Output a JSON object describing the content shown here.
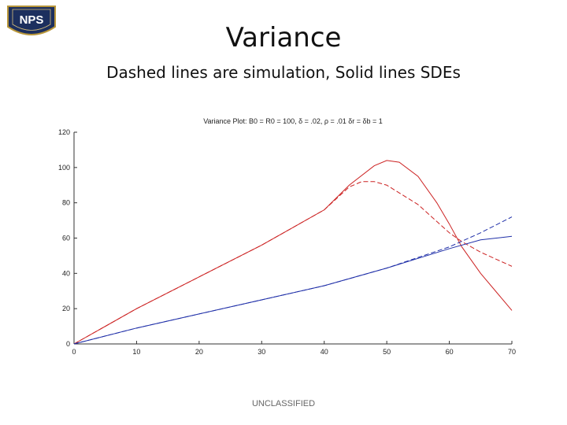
{
  "slide": {
    "title": "Variance",
    "subtitle": "Dashed lines are simulation, Solid lines SDEs",
    "footer": "UNCLASSIFIED",
    "logo_text": "NPS"
  },
  "chart_data": {
    "type": "line",
    "title": "Variance Plot: B0 = R0 = 100, δ = .02, ρ = .01 δr = δb = 1",
    "xlim": [
      0,
      70
    ],
    "ylim": [
      0,
      120
    ],
    "xticks": [
      0,
      10,
      20,
      30,
      40,
      50,
      60,
      70
    ],
    "yticks": [
      0,
      20,
      40,
      60,
      80,
      100,
      120
    ],
    "grid": false,
    "series": [
      {
        "color": "#cc2222",
        "dash": "solid",
        "x": [
          0,
          10,
          20,
          30,
          40,
          44,
          48,
          50,
          52,
          55,
          58,
          60,
          62,
          65,
          70
        ],
        "y": [
          0,
          20,
          38,
          56,
          76,
          90,
          101,
          104,
          103,
          95,
          80,
          68,
          55,
          40,
          19
        ]
      },
      {
        "color": "#cc2222",
        "dash": "dashed",
        "x": [
          0,
          10,
          20,
          30,
          40,
          44,
          46,
          48,
          50,
          55,
          60,
          62,
          65,
          70
        ],
        "y": [
          0,
          20,
          38,
          56,
          76,
          89,
          92,
          92,
          90,
          79,
          63,
          58,
          52,
          44
        ]
      },
      {
        "color": "#1f2fa8",
        "dash": "solid",
        "x": [
          0,
          10,
          20,
          30,
          40,
          50,
          60,
          65,
          70
        ],
        "y": [
          0,
          9,
          17,
          25,
          33,
          43,
          54,
          59,
          61
        ]
      },
      {
        "color": "#1f2fa8",
        "dash": "dashed",
        "x": [
          0,
          10,
          20,
          30,
          40,
          50,
          60,
          65,
          70
        ],
        "y": [
          0,
          9,
          17,
          25,
          33,
          43,
          55,
          63,
          72
        ]
      }
    ]
  }
}
